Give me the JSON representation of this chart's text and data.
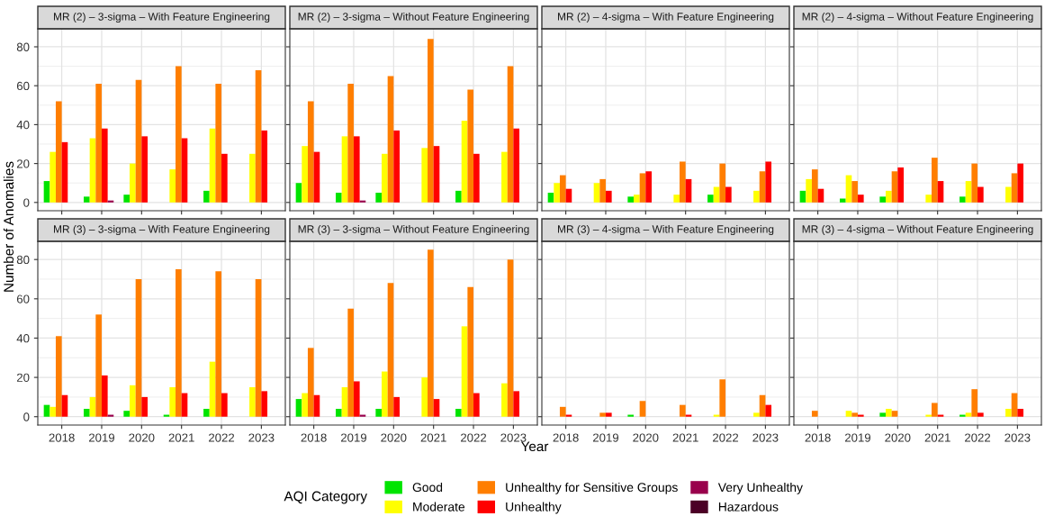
{
  "chart_data": [
    {
      "type": "bar",
      "title": "MR (2) – 3-sigma – With Feature Engineering",
      "legend_title": "AQI Category",
      "legend": "bottom",
      "grid": true,
      "tick_labels": "y",
      "ylim": [
        -4.25,
        89.25
      ],
      "yticks": [
        0,
        20,
        40,
        60,
        80
      ],
      "categories": [
        "2018",
        "2019",
        "2020",
        "2021",
        "2022",
        "2023"
      ],
      "series": [
        {
          "name": "Good",
          "color": "#00e400",
          "values": [
            11,
            3,
            4,
            0,
            6,
            0
          ]
        },
        {
          "name": "Moderate",
          "color": "#ffff00",
          "values": [
            26,
            33,
            20,
            17,
            38,
            25
          ]
        },
        {
          "name": "Unhealthy for Sensitive Groups",
          "color": "#ff7e00",
          "values": [
            52,
            61,
            63,
            70,
            61,
            68
          ]
        },
        {
          "name": "Unhealthy",
          "color": "#ff0000",
          "values": [
            31,
            38,
            34,
            33,
            25,
            37
          ]
        },
        {
          "name": "Very Unhealthy",
          "color": "#99004c",
          "values": [
            0,
            1,
            0,
            0,
            0,
            0
          ]
        },
        {
          "name": "Hazardous",
          "color": "#4c0026",
          "values": [
            0,
            0,
            0,
            0,
            0,
            0
          ]
        }
      ]
    },
    {
      "type": "bar",
      "title": "MR (2) – 3-sigma – Without Feature Engineering",
      "grid": true,
      "tick_labels": false,
      "ylim": [
        -4.25,
        89.25
      ],
      "yticks": [
        0,
        20,
        40,
        60,
        80
      ],
      "categories": [
        "2018",
        "2019",
        "2020",
        "2021",
        "2022",
        "2023"
      ],
      "series": [
        {
          "color": "#00e400",
          "values": [
            10,
            5,
            5,
            0,
            6,
            0
          ]
        },
        {
          "color": "#ffff00",
          "values": [
            29,
            34,
            25,
            28,
            42,
            26
          ]
        },
        {
          "color": "#ff7e00",
          "values": [
            52,
            61,
            65,
            84,
            58,
            70
          ]
        },
        {
          "color": "#ff0000",
          "values": [
            26,
            34,
            37,
            29,
            25,
            38
          ]
        },
        {
          "color": "#99004c",
          "values": [
            0,
            1,
            0,
            0,
            0,
            0
          ]
        },
        {
          "color": "#4c0026",
          "values": [
            0,
            0,
            0,
            0,
            0,
            0
          ]
        }
      ]
    },
    {
      "type": "bar",
      "title": "MR (2) – 4-sigma – With Feature Engineering",
      "grid": true,
      "tick_labels": false,
      "ylim": [
        -4.25,
        89.25
      ],
      "yticks": [
        0,
        20,
        40,
        60,
        80
      ],
      "categories": [
        "2018",
        "2019",
        "2020",
        "2021",
        "2022",
        "2023"
      ],
      "series": [
        {
          "color": "#00e400",
          "values": [
            5,
            0,
            3,
            0,
            4,
            0
          ]
        },
        {
          "color": "#ffff00",
          "values": [
            10,
            10,
            4,
            4,
            8,
            6
          ]
        },
        {
          "color": "#ff7e00",
          "values": [
            14,
            12,
            15,
            21,
            20,
            16
          ]
        },
        {
          "color": "#ff0000",
          "values": [
            7,
            6,
            16,
            12,
            8,
            21
          ]
        },
        {
          "color": "#99004c",
          "values": [
            0,
            0,
            0,
            0,
            0,
            0
          ]
        },
        {
          "color": "#4c0026",
          "values": [
            0,
            0,
            0,
            0,
            0,
            0
          ]
        }
      ]
    },
    {
      "type": "bar",
      "title": "MR (2) – 4-sigma – Without Feature Engineering",
      "grid": true,
      "tick_labels": false,
      "ylim": [
        -4.25,
        89.25
      ],
      "yticks": [
        0,
        20,
        40,
        60,
        80
      ],
      "categories": [
        "2018",
        "2019",
        "2020",
        "2021",
        "2022",
        "2023"
      ],
      "series": [
        {
          "color": "#00e400",
          "values": [
            6,
            2,
            3,
            0,
            3,
            0
          ]
        },
        {
          "color": "#ffff00",
          "values": [
            12,
            14,
            6,
            4,
            11,
            8
          ]
        },
        {
          "color": "#ff7e00",
          "values": [
            17,
            11,
            16,
            23,
            20,
            15
          ]
        },
        {
          "color": "#ff0000",
          "values": [
            7,
            4,
            18,
            11,
            8,
            20
          ]
        },
        {
          "color": "#99004c",
          "values": [
            0,
            0,
            0,
            0,
            0,
            0
          ]
        },
        {
          "color": "#4c0026",
          "values": [
            0,
            0,
            0,
            0,
            0,
            0
          ]
        }
      ]
    },
    {
      "type": "bar",
      "title": "MR (3) – 3-sigma – With Feature Engineering",
      "ylabel": "Number of Anomalies",
      "grid": true,
      "ylim": [
        -4.25,
        89.25
      ],
      "yticks": [
        0,
        20,
        40,
        60,
        80
      ],
      "categories": [
        "2018",
        "2019",
        "2020",
        "2021",
        "2022",
        "2023"
      ],
      "series": [
        {
          "color": "#00e400",
          "values": [
            6,
            4,
            3,
            1,
            4,
            0
          ]
        },
        {
          "color": "#ffff00",
          "values": [
            5,
            10,
            16,
            15,
            28,
            15
          ]
        },
        {
          "color": "#ff7e00",
          "values": [
            41,
            52,
            70,
            75,
            74,
            70
          ]
        },
        {
          "color": "#ff0000",
          "values": [
            11,
            21,
            10,
            12,
            12,
            13
          ]
        },
        {
          "color": "#99004c",
          "values": [
            0,
            1,
            0,
            0,
            0,
            0
          ]
        },
        {
          "color": "#4c0026",
          "values": [
            0,
            0,
            0,
            0,
            0,
            0
          ]
        }
      ]
    },
    {
      "type": "bar",
      "title": "MR (3) – 3-sigma – Without Feature Engineering",
      "xlabel": "Year",
      "grid": true,
      "tick_labels": "x",
      "ylim": [
        -4.25,
        89.25
      ],
      "yticks": [
        0,
        20,
        40,
        60,
        80
      ],
      "categories": [
        "2018",
        "2019",
        "2020",
        "2021",
        "2022",
        "2023"
      ],
      "series": [
        {
          "color": "#00e400",
          "values": [
            9,
            4,
            4,
            0,
            4,
            0
          ]
        },
        {
          "color": "#ffff00",
          "values": [
            12,
            15,
            23,
            20,
            46,
            17
          ]
        },
        {
          "color": "#ff7e00",
          "values": [
            35,
            55,
            68,
            85,
            66,
            80
          ]
        },
        {
          "color": "#ff0000",
          "values": [
            11,
            18,
            10,
            9,
            12,
            13
          ]
        },
        {
          "color": "#99004c",
          "values": [
            0,
            1,
            0,
            0,
            0,
            0
          ]
        },
        {
          "color": "#4c0026",
          "values": [
            0,
            0,
            0,
            0,
            0,
            0
          ]
        }
      ]
    },
    {
      "type": "bar",
      "title": "MR (3) – 4-sigma – With Feature Engineering",
      "grid": true,
      "tick_labels": "x",
      "ylim": [
        -4.25,
        89.25
      ],
      "yticks": [
        0,
        20,
        40,
        60,
        80
      ],
      "categories": [
        "2018",
        "2019",
        "2020",
        "2021",
        "2022",
        "2023"
      ],
      "series": [
        {
          "color": "#00e400",
          "values": [
            0,
            0,
            1,
            0,
            0,
            0
          ]
        },
        {
          "color": "#ffff00",
          "values": [
            0,
            0,
            0,
            0,
            1,
            2
          ]
        },
        {
          "color": "#ff7e00",
          "values": [
            5,
            2,
            8,
            6,
            19,
            11
          ]
        },
        {
          "color": "#ff0000",
          "values": [
            1,
            2,
            0,
            1,
            0,
            6
          ]
        },
        {
          "color": "#99004c",
          "values": [
            0,
            0,
            0,
            0,
            0,
            0
          ]
        },
        {
          "color": "#4c0026",
          "values": [
            0,
            0,
            0,
            0,
            0,
            0
          ]
        }
      ]
    },
    {
      "type": "bar",
      "title": "MR (3) – 4-sigma – Without Feature Engineering",
      "grid": true,
      "tick_labels": "x",
      "ylim": [
        -4.25,
        89.25
      ],
      "yticks": [
        0,
        20,
        40,
        60,
        80
      ],
      "categories": [
        "2018",
        "2019",
        "2020",
        "2021",
        "2022",
        "2023"
      ],
      "series": [
        {
          "color": "#00e400",
          "values": [
            0,
            0,
            2,
            0,
            1,
            0
          ]
        },
        {
          "color": "#ffff00",
          "values": [
            0,
            3,
            4,
            1,
            2,
            4
          ]
        },
        {
          "color": "#ff7e00",
          "values": [
            3,
            2,
            3,
            7,
            14,
            12
          ]
        },
        {
          "color": "#ff0000",
          "values": [
            0,
            1,
            0,
            1,
            2,
            4
          ]
        },
        {
          "color": "#99004c",
          "values": [
            0,
            0,
            0,
            0,
            0,
            0
          ]
        },
        {
          "color": "#4c0026",
          "values": [
            0,
            0,
            0,
            0,
            0,
            0
          ]
        }
      ]
    }
  ]
}
